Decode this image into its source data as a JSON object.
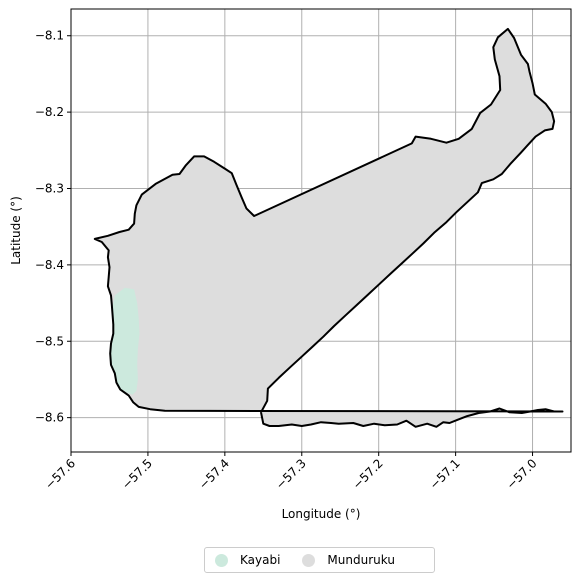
{
  "chart_data": {
    "type": "map",
    "xlabel": "Longitude (°)",
    "ylabel": "Latitude (°)",
    "xlim": [
      -57.6,
      -56.95
    ],
    "ylim": [
      -8.645,
      -8.065
    ],
    "x_ticks": [
      -57.6,
      -57.5,
      -57.4,
      -57.3,
      -57.2,
      -57.1,
      -57.0
    ],
    "y_ticks": [
      -8.6,
      -8.5,
      -8.4,
      -8.3,
      -8.2,
      -8.1
    ],
    "x_tick_labels": [
      "−57.6",
      "−57.5",
      "−57.4",
      "−57.3",
      "−57.2",
      "−57.1",
      "−57.0"
    ],
    "y_tick_labels": [
      "−8.6",
      "−8.5",
      "−8.4",
      "−8.3",
      "−8.2",
      "−8.1"
    ],
    "grid": true,
    "legend_position": "bottom-center",
    "outline_color": "#000000",
    "regions": [
      {
        "name": "Munduruku",
        "color": "#dddddd",
        "polygon": [
          [
            -57.569,
            -8.366
          ],
          [
            -57.552,
            -8.362
          ],
          [
            -57.537,
            -8.357
          ],
          [
            -57.525,
            -8.354
          ],
          [
            -57.518,
            -8.346
          ],
          [
            -57.517,
            -8.333
          ],
          [
            -57.515,
            -8.322
          ],
          [
            -57.508,
            -8.308
          ],
          [
            -57.49,
            -8.294
          ],
          [
            -57.468,
            -8.282
          ],
          [
            -57.459,
            -8.281
          ],
          [
            -57.451,
            -8.27
          ],
          [
            -57.44,
            -8.258
          ],
          [
            -57.427,
            -8.258
          ],
          [
            -57.414,
            -8.265
          ],
          [
            -57.4,
            -8.274
          ],
          [
            -57.391,
            -8.28
          ],
          [
            -57.385,
            -8.295
          ],
          [
            -57.378,
            -8.312
          ],
          [
            -57.372,
            -8.326
          ],
          [
            -57.362,
            -8.336
          ],
          [
            -57.157,
            -8.241
          ],
          [
            -57.152,
            -8.232
          ],
          [
            -57.132,
            -8.235
          ],
          [
            -57.112,
            -8.24
          ],
          [
            -57.096,
            -8.235
          ],
          [
            -57.079,
            -8.222
          ],
          [
            -57.068,
            -8.201
          ],
          [
            -57.054,
            -8.19
          ],
          [
            -57.042,
            -8.171
          ],
          [
            -57.043,
            -8.153
          ],
          [
            -57.049,
            -8.131
          ],
          [
            -57.051,
            -8.115
          ],
          [
            -57.045,
            -8.102
          ],
          [
            -57.032,
            -8.091
          ],
          [
            -57.024,
            -8.103
          ],
          [
            -57.015,
            -8.125
          ],
          [
            -57.006,
            -8.137
          ],
          [
            -57.004,
            -8.147
          ],
          [
            -57.0,
            -8.162
          ],
          [
            -56.997,
            -8.177
          ],
          [
            -56.983,
            -8.189
          ],
          [
            -56.975,
            -8.2
          ],
          [
            -56.972,
            -8.212
          ],
          [
            -56.974,
            -8.222
          ],
          [
            -56.984,
            -8.224
          ],
          [
            -56.996,
            -8.232
          ],
          [
            -57.007,
            -8.244
          ],
          [
            -57.015,
            -8.253
          ],
          [
            -57.029,
            -8.268
          ],
          [
            -57.04,
            -8.281
          ],
          [
            -57.051,
            -8.288
          ],
          [
            -57.066,
            -8.293
          ],
          [
            -57.071,
            -8.305
          ],
          [
            -57.085,
            -8.318
          ],
          [
            -57.099,
            -8.331
          ],
          [
            -57.113,
            -8.345
          ],
          [
            -57.128,
            -8.358
          ],
          [
            -57.142,
            -8.372
          ],
          [
            -57.157,
            -8.386
          ],
          [
            -57.171,
            -8.399
          ],
          [
            -57.185,
            -8.412
          ],
          [
            -57.2,
            -8.426
          ],
          [
            -57.215,
            -8.44
          ],
          [
            -57.229,
            -8.453
          ],
          [
            -57.243,
            -8.466
          ],
          [
            -57.258,
            -8.48
          ],
          [
            -57.272,
            -8.494
          ],
          [
            -57.287,
            -8.508
          ],
          [
            -57.301,
            -8.521
          ],
          [
            -57.315,
            -8.534
          ],
          [
            -57.33,
            -8.548
          ],
          [
            -57.344,
            -8.562
          ],
          [
            -57.345,
            -8.578
          ],
          [
            -57.353,
            -8.593
          ],
          [
            -57.35,
            -8.608
          ],
          [
            -57.342,
            -8.611
          ],
          [
            -57.33,
            -8.611
          ],
          [
            -57.313,
            -8.609
          ],
          [
            -57.3,
            -8.611
          ],
          [
            -57.288,
            -8.609
          ],
          [
            -57.275,
            -8.606
          ],
          [
            -57.262,
            -8.607
          ],
          [
            -57.252,
            -8.608
          ],
          [
            -57.233,
            -8.607
          ],
          [
            -57.22,
            -8.611
          ],
          [
            -57.206,
            -8.608
          ],
          [
            -57.192,
            -8.61
          ],
          [
            -57.176,
            -8.609
          ],
          [
            -57.164,
            -8.604
          ],
          [
            -57.152,
            -8.612
          ],
          [
            -57.137,
            -8.608
          ],
          [
            -57.125,
            -8.612
          ],
          [
            -57.116,
            -8.606
          ],
          [
            -57.108,
            -8.607
          ],
          [
            -57.098,
            -8.603
          ],
          [
            -57.085,
            -8.598
          ],
          [
            -57.07,
            -8.594
          ],
          [
            -57.055,
            -8.592
          ],
          [
            -57.043,
            -8.588
          ],
          [
            -57.03,
            -8.593
          ],
          [
            -57.014,
            -8.594
          ],
          [
            -57.003,
            -8.592
          ],
          [
            -56.993,
            -8.59
          ],
          [
            -56.983,
            -8.589
          ],
          [
            -56.972,
            -8.592
          ],
          [
            -56.961,
            -8.592
          ],
          [
            -57.478,
            -8.591
          ],
          [
            -57.497,
            -8.589
          ],
          [
            -57.512,
            -8.586
          ],
          [
            -57.519,
            -8.58
          ],
          [
            -57.525,
            -8.571
          ],
          [
            -57.536,
            -8.563
          ],
          [
            -57.541,
            -8.554
          ],
          [
            -57.543,
            -8.542
          ],
          [
            -57.548,
            -8.531
          ],
          [
            -57.549,
            -8.516
          ],
          [
            -57.548,
            -8.503
          ],
          [
            -57.545,
            -8.49
          ],
          [
            -57.545,
            -8.478
          ],
          [
            -57.546,
            -8.464
          ],
          [
            -57.547,
            -8.452
          ],
          [
            -57.548,
            -8.44
          ],
          [
            -57.552,
            -8.428
          ],
          [
            -57.551,
            -8.416
          ],
          [
            -57.55,
            -8.403
          ],
          [
            -57.552,
            -8.39
          ],
          [
            -57.551,
            -8.381
          ],
          [
            -57.56,
            -8.37
          ]
        ]
      },
      {
        "name": "Kayabi",
        "color": "#cce9dd",
        "polygon": [
          [
            -57.53,
            -8.43
          ],
          [
            -57.518,
            -8.432
          ],
          [
            -57.514,
            -8.45
          ],
          [
            -57.512,
            -8.47
          ],
          [
            -57.511,
            -8.49
          ],
          [
            -57.513,
            -8.51
          ],
          [
            -57.514,
            -8.53
          ],
          [
            -57.513,
            -8.55
          ],
          [
            -57.515,
            -8.565
          ],
          [
            -57.52,
            -8.57
          ],
          [
            -57.525,
            -8.568
          ],
          [
            -57.537,
            -8.562
          ],
          [
            -57.541,
            -8.553
          ],
          [
            -57.544,
            -8.54
          ],
          [
            -57.548,
            -8.528
          ],
          [
            -57.549,
            -8.515
          ],
          [
            -57.547,
            -8.5
          ],
          [
            -57.545,
            -8.488
          ],
          [
            -57.546,
            -8.47
          ],
          [
            -57.546,
            -8.455
          ],
          [
            -57.543,
            -8.44
          ]
        ]
      }
    ]
  },
  "legend": {
    "items": [
      {
        "label": "Kayabi",
        "color": "#cce9dd"
      },
      {
        "label": "Munduruku",
        "color": "#dddddd"
      }
    ]
  }
}
